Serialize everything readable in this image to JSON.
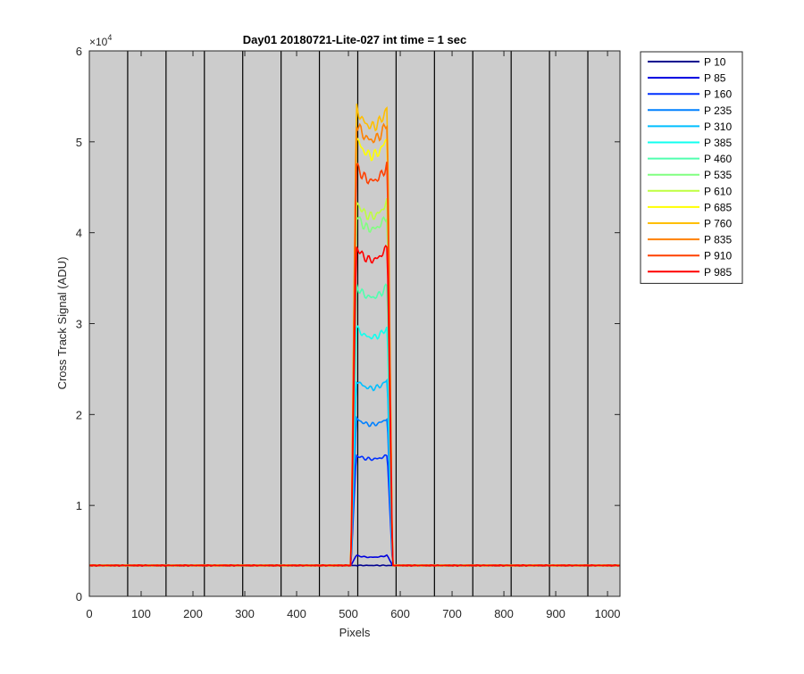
{
  "chart_data": {
    "type": "line",
    "title": "Day01 20180721-Lite-027 int time = 1 sec",
    "xlabel": "Pixels",
    "ylabel": "Cross Track Signal (ADU)",
    "y_exponent_label": "×10",
    "y_exponent_power": "4",
    "xlim": [
      0,
      1024
    ],
    "ylim": [
      0,
      60000
    ],
    "x_ticks": [
      0,
      100,
      200,
      300,
      400,
      500,
      600,
      700,
      800,
      900,
      1000
    ],
    "x_tick_labels": [
      "0",
      "100",
      "200",
      "300",
      "400",
      "500",
      "600",
      "700",
      "800",
      "900",
      "1000"
    ],
    "y_ticks": [
      0,
      10000,
      20000,
      30000,
      40000,
      50000,
      60000
    ],
    "y_tick_labels": [
      "0",
      "1",
      "2",
      "3",
      "4",
      "5",
      "6"
    ],
    "background_color": "#cccccc",
    "vertical_lines_x": [
      74,
      148,
      222,
      296,
      370,
      444,
      518,
      592,
      666,
      740,
      814,
      888,
      962
    ],
    "legend_position": "outside-right",
    "baseline": 3400,
    "band": {
      "rise_start": 505,
      "rise_end": 515,
      "fall_start": 575,
      "fall_end": 585
    },
    "series": [
      {
        "name": "P 10",
        "color": "#00008f",
        "plateau": 3400,
        "dip": 0
      },
      {
        "name": "P 85",
        "color": "#0000df",
        "plateau": 4500,
        "dip": 200
      },
      {
        "name": "P 160",
        "color": "#0030ff",
        "plateau": 15500,
        "dip": 400
      },
      {
        "name": "P 235",
        "color": "#0080ff",
        "plateau": 19600,
        "dip": 700
      },
      {
        "name": "P 310",
        "color": "#00bfff",
        "plateau": 23800,
        "dip": 900
      },
      {
        "name": "P 385",
        "color": "#10ffef",
        "plateau": 29600,
        "dip": 1100
      },
      {
        "name": "P 460",
        "color": "#50ffaf",
        "plateau": 34200,
        "dip": 1300
      },
      {
        "name": "P 535",
        "color": "#80ff80",
        "plateau": 42000,
        "dip": 1600
      },
      {
        "name": "P 610",
        "color": "#bfff40",
        "plateau": 43500,
        "dip": 1700
      },
      {
        "name": "P 685",
        "color": "#ffff00",
        "plateau": 50500,
        "dip": 2000
      },
      {
        "name": "P 760",
        "color": "#ffbf00",
        "plateau": 53800,
        "dip": 2100
      },
      {
        "name": "P 835",
        "color": "#ff8000",
        "plateau": 52200,
        "dip": 2000
      },
      {
        "name": "P 910",
        "color": "#ff4000",
        "plateau": 47500,
        "dip": 1800
      },
      {
        "name": "P 985",
        "color": "#ff0000",
        "plateau": 38500,
        "dip": 1500
      }
    ]
  }
}
